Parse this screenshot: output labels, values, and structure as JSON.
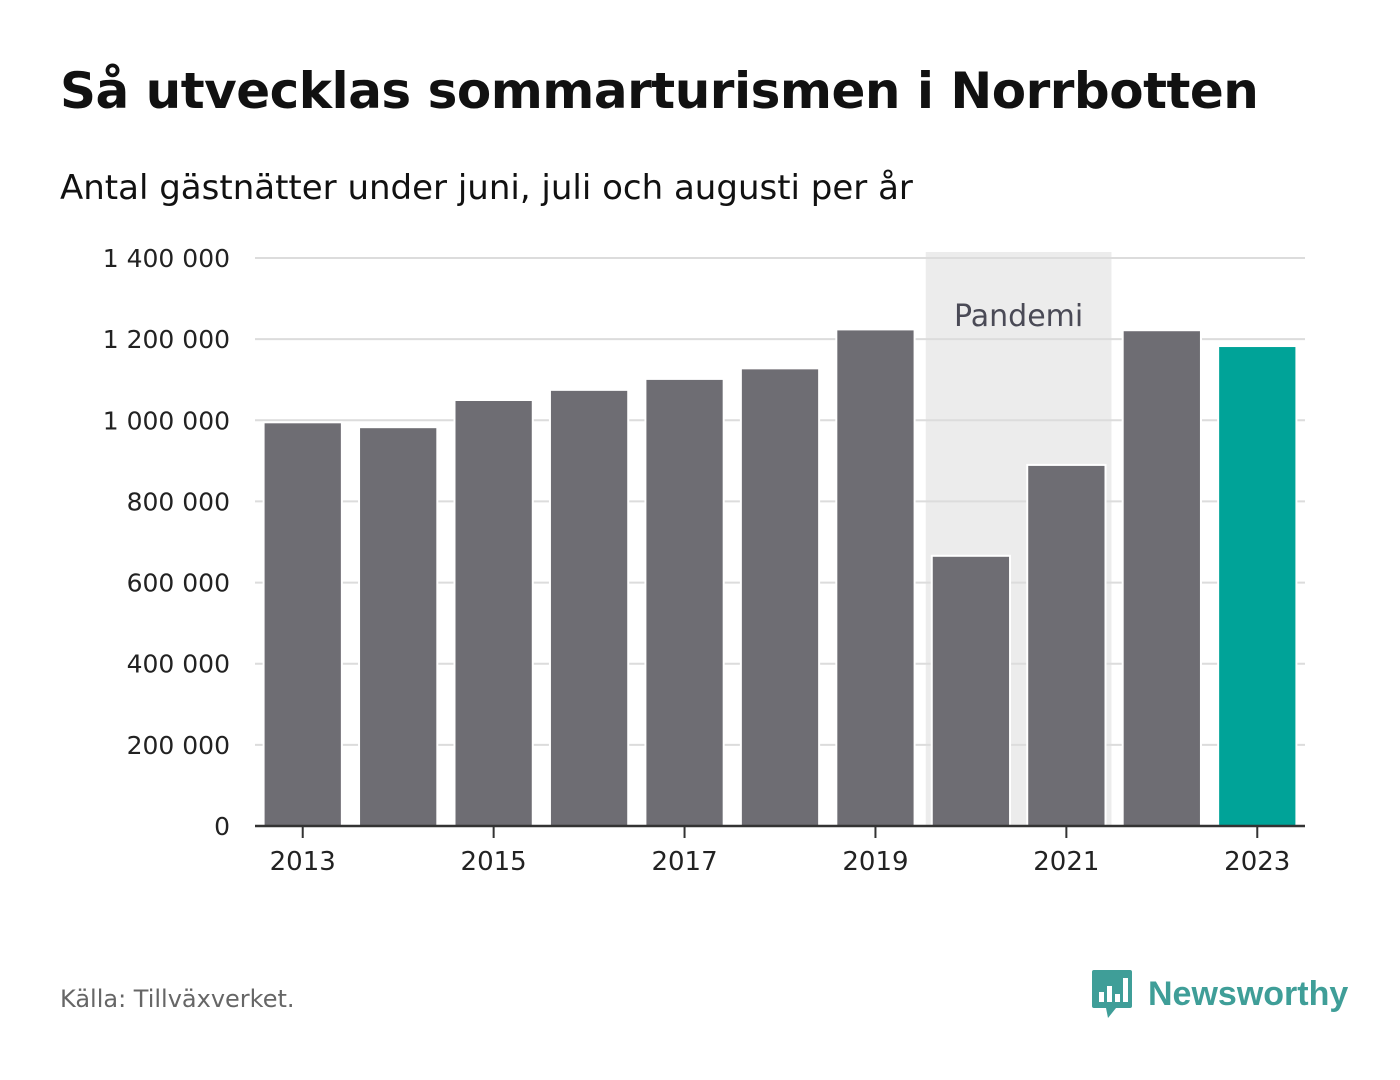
{
  "header": {
    "title": "Så utvecklas sommarturismen i Norrbotten",
    "subtitle": "Antal gästnätter under juni, juli och augusti per år"
  },
  "footer": {
    "source": "Källa: Tillväxverket.",
    "brand": "Newsworthy"
  },
  "chart_data": {
    "type": "bar",
    "categories": [
      2013,
      2014,
      2015,
      2016,
      2017,
      2018,
      2019,
      2020,
      2021,
      2022,
      2023
    ],
    "values": [
      995000,
      983000,
      1050000,
      1075000,
      1102000,
      1128000,
      1224000,
      666000,
      890000,
      1222000,
      1183000
    ],
    "ylim": [
      0,
      1400000
    ],
    "yticks": [
      0,
      200000,
      400000,
      600000,
      800000,
      1000000,
      1200000,
      1400000
    ],
    "ytick_labels": [
      "0",
      "200 000",
      "400 000",
      "600 000",
      "800 000",
      "1 000 000",
      "1 200 000",
      "1 400 000"
    ],
    "xticks": [
      2013,
      2015,
      2017,
      2019,
      2021,
      2023
    ],
    "xtick_labels": [
      "2013",
      "2015",
      "2017",
      "2019",
      "2021",
      "2023"
    ],
    "highlight": {
      "category": 2023,
      "color": "#00a398"
    },
    "bar_color": "#6e6d73",
    "annotation": {
      "label": "Pandemi",
      "from": 2020,
      "to": 2021,
      "color": "#ececec"
    },
    "grid": true,
    "legend": "none"
  }
}
